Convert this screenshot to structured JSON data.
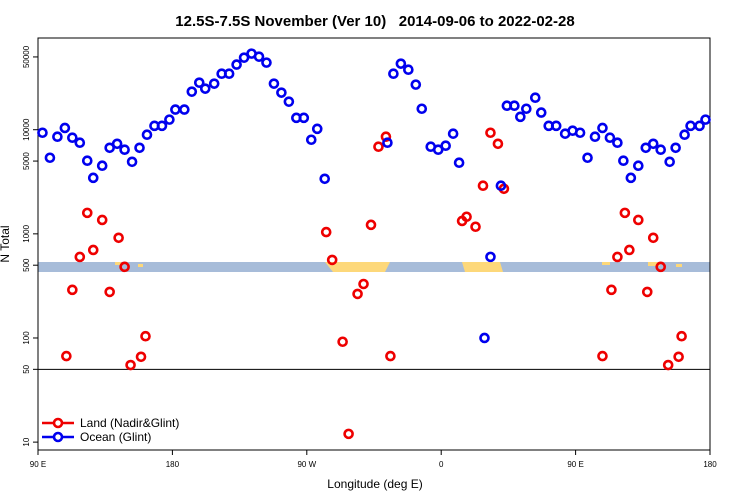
{
  "chart_data": {
    "type": "scatter",
    "title": "12.5S-7.5S November (Ver 10)   2014-09-06 to 2022-02-28",
    "x_label": "Longitude (deg E)",
    "y_label": "N Total",
    "log_y": true,
    "xlim": [
      90,
      540
    ],
    "ylim": [
      8.4,
      76000
    ],
    "xticks": [
      {
        "value": 90,
        "label": "90 E"
      },
      {
        "value": 180,
        "label": "180"
      },
      {
        "value": 270,
        "label": "90 W"
      },
      {
        "value": 360,
        "label": "0"
      },
      {
        "value": 450,
        "label": "90 E"
      },
      {
        "value": 540,
        "label": "180"
      }
    ],
    "yticks": [
      10,
      50,
      100,
      500,
      1000,
      5000,
      10000,
      50000
    ],
    "hline": 50,
    "legend": "lower left",
    "series": [
      {
        "name": "Land (Nadir&Glint)",
        "color": "#ee0000",
        "x": [
          109,
          113,
          118,
          123,
          127,
          133,
          138,
          144,
          148,
          152,
          159,
          162,
          283,
          287,
          294,
          298,
          304,
          308,
          313,
          318,
          323,
          326,
          374,
          377,
          383,
          388,
          393,
          398,
          402,
          468,
          474,
          478,
          483,
          486,
          492,
          498,
          502,
          507,
          512,
          519,
          521
        ],
        "values": [
          67,
          290,
          600,
          1590,
          700,
          1360,
          277,
          917,
          482,
          55,
          66,
          104,
          1040,
          562,
          92,
          12,
          265,
          330,
          1220,
          6870,
          8570,
          67,
          1330,
          1460,
          1170,
          2900,
          9350,
          7330,
          2710,
          67,
          290,
          600,
          1590,
          700,
          1360,
          277,
          917,
          482,
          55,
          66,
          104
        ]
      },
      {
        "name": "Ocean (Glint)",
        "color": "#0000ee",
        "x": [
          93,
          98,
          103,
          108,
          113,
          118,
          123,
          127,
          133,
          138,
          143,
          148,
          153,
          158,
          163,
          168,
          173,
          178,
          182,
          188,
          193,
          198,
          202,
          208,
          213,
          218,
          223,
          228,
          233,
          238,
          243,
          248,
          253,
          258,
          263,
          268,
          273,
          277,
          282,
          324,
          328,
          333,
          338,
          343,
          347,
          353,
          358,
          363,
          368,
          372,
          389,
          393,
          400,
          404,
          409,
          413,
          417,
          423,
          427,
          432,
          437,
          443,
          448,
          453,
          458,
          463,
          468,
          473,
          478,
          482,
          487,
          492,
          497,
          502,
          507,
          513,
          517,
          523,
          527,
          533,
          537
        ],
        "values": [
          9350,
          5380,
          8570,
          10400,
          8380,
          7500,
          5040,
          3450,
          4510,
          6710,
          7330,
          6430,
          4920,
          6710,
          8950,
          10900,
          10900,
          12500,
          15600,
          15600,
          23200,
          28300,
          24800,
          27700,
          34500,
          34500,
          42200,
          49200,
          53800,
          50300,
          44100,
          27700,
          22700,
          18600,
          13000,
          13000,
          8010,
          10200,
          3380,
          7500,
          34500,
          43100,
          37700,
          27100,
          15900,
          6870,
          6430,
          7020,
          9160,
          4820,
          100,
          601,
          2900,
          17000,
          17000,
          13300,
          15900,
          20300,
          14600,
          10900,
          10900,
          9160,
          9780,
          9350,
          5380,
          8570,
          10400,
          8380,
          7500,
          5040,
          3450,
          4510,
          6710,
          7330,
          6430,
          4920,
          6710,
          8950,
          10900,
          10900,
          12500
        ]
      }
    ]
  }
}
